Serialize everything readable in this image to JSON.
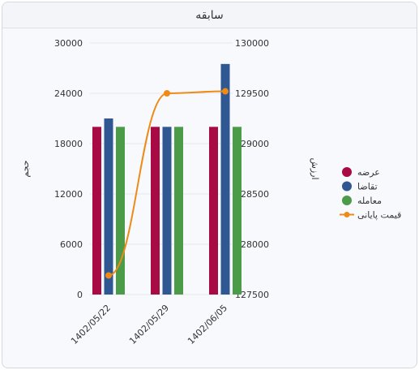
{
  "panel": {
    "title": "سابقه"
  },
  "colors": {
    "offer": "#a80a43",
    "demand": "#2f5792",
    "trade": "#4c9b48",
    "price": "#ee8b17",
    "grid": "#e4e7ec"
  },
  "chart_data": {
    "type": "bar",
    "categories": [
      "1402/05/22",
      "1402/05/29",
      "1402/06/05"
    ],
    "series": [
      {
        "name": "عرضه",
        "color": "#a80a43",
        "axis": "left",
        "values": [
          20000,
          20000,
          20000
        ]
      },
      {
        "name": "تقاضا",
        "color": "#2f5792",
        "axis": "left",
        "values": [
          21000,
          20000,
          27500
        ]
      },
      {
        "name": "معامله",
        "color": "#4c9b48",
        "axis": "left",
        "values": [
          20000,
          20000,
          20000
        ]
      },
      {
        "name": "قیمت پایانی",
        "color": "#ee8b17",
        "axis": "right",
        "type": "line",
        "values": [
          127690,
          129500,
          129520
        ]
      }
    ],
    "ylabel_left": "حجم",
    "ylabel_right": "ارزش",
    "ylim_left": [
      0,
      30000
    ],
    "yticks_left": [
      0,
      6000,
      12000,
      18000,
      24000,
      30000
    ],
    "ylim_right": [
      127500,
      130000
    ],
    "yticks_right": [
      127500,
      128000,
      128500,
      129000,
      129500,
      130000
    ],
    "grid": true,
    "legend_position": "right"
  }
}
